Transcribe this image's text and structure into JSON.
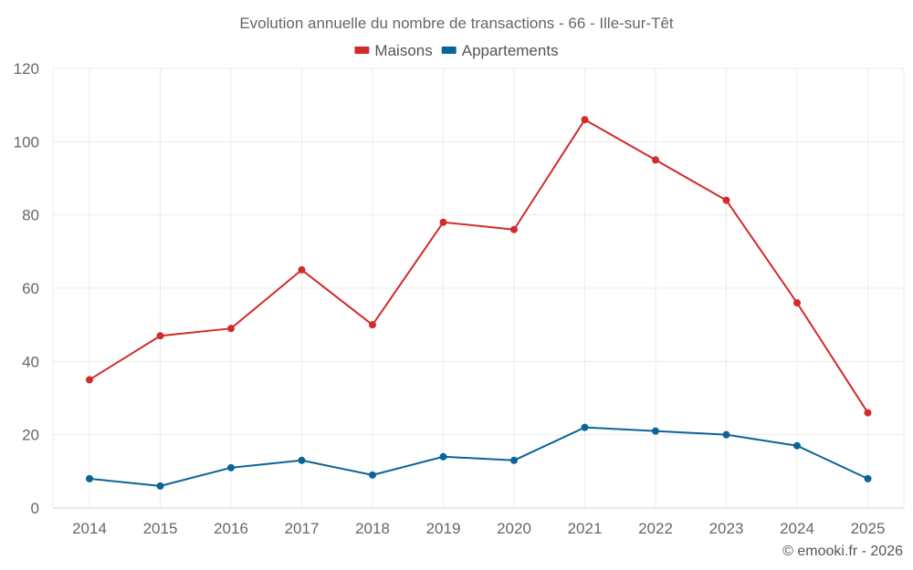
{
  "chart_data": {
    "type": "line",
    "title": "Evolution annuelle du nombre de transactions - 66 - Ille-sur-Têt",
    "x": [
      "2014",
      "2015",
      "2016",
      "2017",
      "2018",
      "2019",
      "2020",
      "2021",
      "2022",
      "2023",
      "2024",
      "2025"
    ],
    "ylim": [
      0,
      120
    ],
    "yticks": [
      "0",
      "20",
      "40",
      "60",
      "80",
      "100",
      "120"
    ],
    "grid": true,
    "legend_position": "top-center",
    "series": [
      {
        "name": "Maisons",
        "color": "#d32a2a",
        "values": [
          35,
          47,
          49,
          65,
          50,
          78,
          76,
          106,
          95,
          84,
          56,
          26
        ]
      },
      {
        "name": "Appartements",
        "color": "#0b6499",
        "values": [
          8,
          6,
          11,
          13,
          9,
          14,
          13,
          22,
          21,
          20,
          17,
          8
        ]
      }
    ],
    "credit": "© emooki.fr - 2026"
  }
}
